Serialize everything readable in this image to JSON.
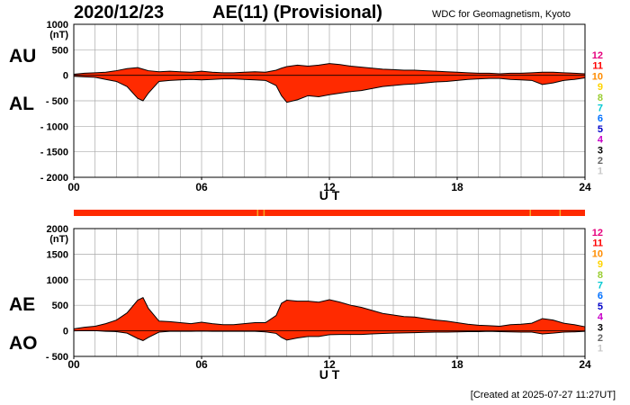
{
  "header": {
    "date": "2020/12/23",
    "title": "AE(11) (Provisional)",
    "org": "WDC for Geomagnetism, Kyoto"
  },
  "labels": {
    "au": "AU",
    "al": "AL",
    "ae": "AE",
    "ao": "AO"
  },
  "footer": {
    "created": "[Created at 2025-07-27 11:27UT]"
  },
  "colors": {
    "fill": "#ff2a00",
    "band": "#ff2a00",
    "band_marks": "#f5a623",
    "grid": "#aaaaaa",
    "line": "#000000"
  },
  "legend": [
    {
      "label": "12",
      "color": "#e6007e"
    },
    {
      "label": "11",
      "color": "#ff0000"
    },
    {
      "label": "10",
      "color": "#ff8c00"
    },
    {
      "label": "9",
      "color": "#ffd400"
    },
    {
      "label": "8",
      "color": "#9acd32"
    },
    {
      "label": "7",
      "color": "#00c8d2"
    },
    {
      "label": "6",
      "color": "#0070ff"
    },
    {
      "label": "5",
      "color": "#0000c8"
    },
    {
      "label": "4",
      "color": "#c800c8"
    },
    {
      "label": "3",
      "color": "#000000"
    },
    {
      "label": "2",
      "color": "#646464"
    },
    {
      "label": "1",
      "color": "#c8c8c8"
    }
  ],
  "chart_data": [
    {
      "type": "area",
      "panel": "AU/AL",
      "unit": "(nT)",
      "xlabel": "U T",
      "xlim": [
        0,
        24
      ],
      "xticks": [
        "00",
        "06",
        "12",
        "18",
        "24"
      ],
      "ylim": [
        -2000,
        1000
      ],
      "yticks": [
        "1000",
        "500",
        "0",
        "- 500",
        "- 1000",
        "- 1500",
        "- 2000"
      ],
      "grid": true,
      "x": [
        0,
        0.5,
        1,
        1.5,
        2,
        2.5,
        3,
        3.25,
        3.5,
        4,
        4.5,
        5,
        5.5,
        6,
        6.5,
        7,
        7.5,
        8,
        8.5,
        9,
        9.5,
        9.75,
        10,
        10.5,
        11,
        11.5,
        12,
        12.5,
        13,
        13.5,
        14,
        14.5,
        15,
        15.5,
        16,
        16.5,
        17,
        17.5,
        18,
        18.5,
        19,
        19.5,
        20,
        20.5,
        21,
        21.5,
        22,
        22.5,
        23,
        23.5,
        24
      ],
      "series": [
        {
          "name": "AU",
          "values": [
            20,
            40,
            50,
            60,
            90,
            130,
            150,
            120,
            90,
            70,
            80,
            70,
            60,
            80,
            60,
            50,
            50,
            60,
            70,
            60,
            100,
            140,
            170,
            200,
            180,
            200,
            230,
            210,
            180,
            160,
            140,
            120,
            110,
            100,
            100,
            90,
            80,
            70,
            60,
            50,
            40,
            40,
            30,
            40,
            40,
            50,
            60,
            60,
            50,
            40,
            30
          ]
        },
        {
          "name": "AL",
          "values": [
            -20,
            -30,
            -40,
            -80,
            -120,
            -220,
            -450,
            -500,
            -350,
            -120,
            -100,
            -90,
            -80,
            -90,
            -80,
            -70,
            -70,
            -80,
            -90,
            -100,
            -200,
            -400,
            -530,
            -480,
            -400,
            -420,
            -380,
            -350,
            -320,
            -300,
            -260,
            -220,
            -200,
            -180,
            -170,
            -150,
            -130,
            -120,
            -100,
            -80,
            -70,
            -60,
            -60,
            -80,
            -90,
            -100,
            -180,
            -150,
            -100,
            -80,
            -50
          ]
        }
      ]
    },
    {
      "type": "area",
      "panel": "AE/AO",
      "unit": "(nT)",
      "xlabel": "U T",
      "xlim": [
        0,
        24
      ],
      "xticks": [
        "00",
        "06",
        "12",
        "18",
        "24"
      ],
      "ylim": [
        -500,
        2000
      ],
      "yticks": [
        "2000",
        "1500",
        "1000",
        "500",
        "0",
        "- 500"
      ],
      "grid": true,
      "x": [
        0,
        0.5,
        1,
        1.5,
        2,
        2.5,
        3,
        3.25,
        3.5,
        4,
        4.5,
        5,
        5.5,
        6,
        6.5,
        7,
        7.5,
        8,
        8.5,
        9,
        9.5,
        9.75,
        10,
        10.5,
        11,
        11.5,
        12,
        12.5,
        13,
        13.5,
        14,
        14.5,
        15,
        15.5,
        16,
        16.5,
        17,
        17.5,
        18,
        18.5,
        19,
        19.5,
        20,
        20.5,
        21,
        21.5,
        22,
        22.5,
        23,
        23.5,
        24
      ],
      "series": [
        {
          "name": "AE",
          "values": [
            40,
            70,
            90,
            140,
            210,
            350,
            600,
            650,
            440,
            190,
            180,
            160,
            140,
            170,
            140,
            120,
            120,
            140,
            160,
            160,
            300,
            540,
            600,
            580,
            580,
            560,
            610,
            560,
            500,
            460,
            400,
            340,
            310,
            280,
            270,
            240,
            210,
            190,
            160,
            130,
            110,
            100,
            90,
            120,
            130,
            150,
            240,
            210,
            150,
            120,
            80
          ]
        },
        {
          "name": "AO",
          "values": [
            0,
            5,
            5,
            -10,
            -15,
            -45,
            -150,
            -190,
            -130,
            -25,
            -10,
            -10,
            -10,
            -5,
            -10,
            -10,
            -10,
            -10,
            -10,
            -20,
            -50,
            -130,
            -180,
            -140,
            -110,
            -110,
            -75,
            -70,
            -70,
            -70,
            -60,
            -50,
            -45,
            -40,
            -35,
            -30,
            -25,
            -25,
            -20,
            -15,
            -15,
            -10,
            -15,
            -20,
            -25,
            -25,
            -60,
            -45,
            -25,
            -20,
            -10
          ]
        }
      ]
    }
  ]
}
